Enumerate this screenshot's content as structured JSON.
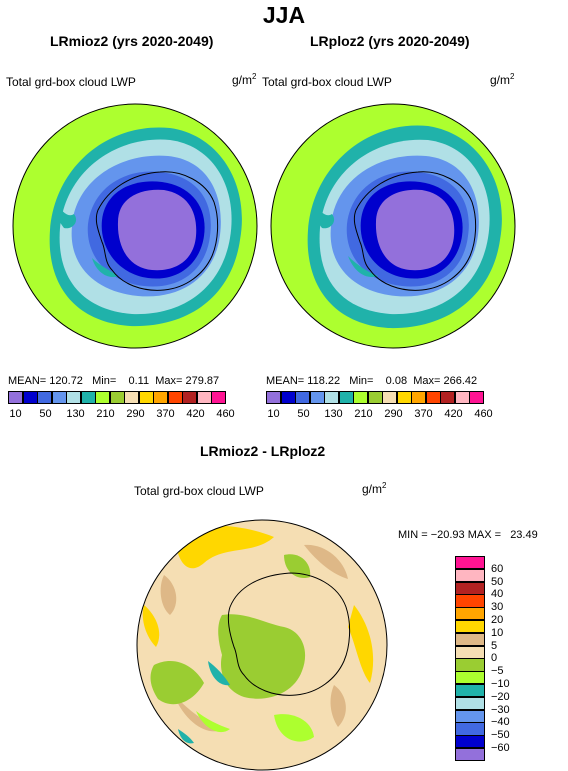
{
  "season": "JJA",
  "panels": [
    {
      "title": "LRmioz2 (yrs 2020-2049)",
      "variable": "Total grd-box cloud LWP",
      "units_base": "g/m",
      "units_exp": "2",
      "stats": {
        "mean_label": "MEAN=",
        "mean": "120.72",
        "min_label": "Min=",
        "min": "0.11",
        "max_label": "Max=",
        "max": "279.87"
      }
    },
    {
      "title": "LRploz2 (yrs 2020-2049)",
      "variable": "Total grd-box cloud LWP",
      "units_base": "g/m",
      "units_exp": "2",
      "stats": {
        "mean_label": "MEAN=",
        "mean": "118.22",
        "min_label": "Min=",
        "min": "0.08",
        "max_label": "Max=",
        "max": "266.42"
      }
    }
  ],
  "abs_colorbar": {
    "colors": [
      "#9370db",
      "#0000cd",
      "#4169e1",
      "#6495ed",
      "#b0e0e6",
      "#20b2aa",
      "#adff2f",
      "#9acd32",
      "#f5deb3",
      "#ffd700",
      "#ffa500",
      "#ff4500",
      "#b22222",
      "#ffb6c1",
      "#ff1493"
    ],
    "labels": [
      "10",
      "50",
      "130",
      "210",
      "290",
      "370",
      "420",
      "460"
    ]
  },
  "diff": {
    "title": "LRmioz2 - LRploz2",
    "variable": "Total grd-box cloud LWP",
    "units_base": "g/m",
    "units_exp": "2",
    "minmax": "MIN = −20.93 MAX =   23.49",
    "colorbar": {
      "colors": [
        "#ff1493",
        "#ffb6c1",
        "#b22222",
        "#ff4500",
        "#ffa500",
        "#ffd700",
        "#deb887",
        "#f5deb3",
        "#9acd32",
        "#adff2f",
        "#20b2aa",
        "#b0e0e6",
        "#6495ed",
        "#4169e1",
        "#0000cd",
        "#9370db"
      ],
      "labels": [
        "60",
        "50",
        "40",
        "30",
        "20",
        "10",
        "5",
        "0",
        "−5",
        "−10",
        "−20",
        "−30",
        "−40",
        "−50",
        "−60"
      ]
    }
  },
  "palette": {
    "ocean_far": "#adff2f",
    "teal": "#20b2aa",
    "light_blue": "#b0e0e6",
    "medium_blue": "#6495ed",
    "royal_blue": "#4169e1",
    "deep_blue": "#0000cd",
    "interior": "#9370db",
    "wheat": "#f5deb3",
    "tan": "#deb887",
    "olive": "#9acd32",
    "gold": "#ffd700"
  }
}
